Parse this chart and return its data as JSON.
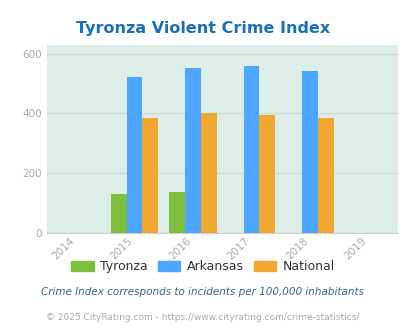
{
  "title": "Tyronza Violent Crime Index",
  "title_color": "#1a6fba",
  "years": [
    2015,
    2016,
    2017,
    2018
  ],
  "tyronza": [
    130,
    135,
    0,
    0
  ],
  "arkansas": [
    520,
    552,
    557,
    543
  ],
  "national": [
    383,
    400,
    395,
    383
  ],
  "bar_color_tyronza": "#7dbf3d",
  "bar_color_arkansas": "#4da6ff",
  "bar_color_national": "#f0a830",
  "axis_bg_color": "#ddeee8",
  "xlim": [
    2013.5,
    2019.5
  ],
  "ylim": [
    0,
    630
  ],
  "yticks": [
    0,
    200,
    400,
    600
  ],
  "xlabel_years": [
    2014,
    2015,
    2016,
    2017,
    2018,
    2019
  ],
  "bar_width": 0.27,
  "legend_labels": [
    "Tyronza",
    "Arkansas",
    "National"
  ],
  "footnote1": "Crime Index corresponds to incidents per 100,000 inhabitants",
  "footnote2": "© 2025 CityRating.com - https://www.cityrating.com/crime-statistics/",
  "footnote1_color": "#336699",
  "footnote2_color": "#aaaaaa",
  "grid_color": "#c8dcd8",
  "title_fontsize": 11.5,
  "tick_color": "#aaaaaa",
  "tick_fontsize": 7.5
}
